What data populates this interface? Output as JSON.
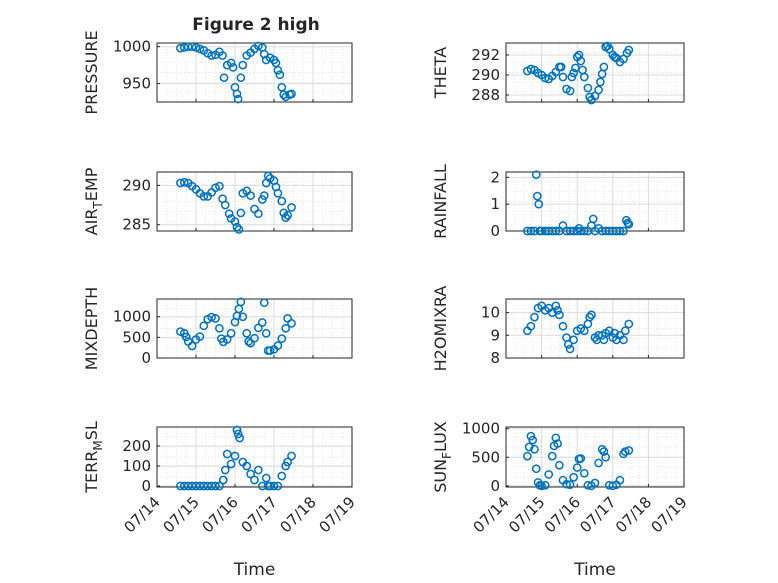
{
  "figure_title": "Figure 2 high",
  "x_tick_labels": [
    "07/14",
    "07/15",
    "07/16",
    "07/17",
    "07/18",
    "07/19"
  ],
  "x_label": "Time",
  "colors": {
    "marker": "#0072BD",
    "axis": "#262626",
    "grid": "#dcdcdc"
  },
  "chart_data": [
    {
      "type": "scatter",
      "title": "Figure 2 high",
      "ylabel": "PRESSURE",
      "ylabel_sub": "",
      "xlabel": "",
      "ylim": [
        925,
        1005
      ],
      "yticks": [
        950,
        1000
      ],
      "xlim": [
        0,
        5
      ],
      "grid": true,
      "legend": "none",
      "points": [
        [
          0.6,
          998
        ],
        [
          0.7,
          999
        ],
        [
          0.8,
          1000
        ],
        [
          0.9,
          1000
        ],
        [
          1.0,
          999
        ],
        [
          1.1,
          997
        ],
        [
          1.2,
          995
        ],
        [
          1.3,
          991
        ],
        [
          1.4,
          988
        ],
        [
          1.5,
          989
        ],
        [
          1.6,
          993
        ],
        [
          1.68,
          988
        ],
        [
          1.72,
          958
        ],
        [
          1.8,
          975
        ],
        [
          1.9,
          978
        ],
        [
          1.95,
          972
        ],
        [
          2.0,
          945
        ],
        [
          2.05,
          936
        ],
        [
          2.08,
          929
        ],
        [
          2.15,
          958
        ],
        [
          2.2,
          975
        ],
        [
          2.3,
          988
        ],
        [
          2.4,
          992
        ],
        [
          2.5,
          997
        ],
        [
          2.6,
          1001
        ],
        [
          2.7,
          999
        ],
        [
          2.75,
          990
        ],
        [
          2.8,
          982
        ],
        [
          2.9,
          985
        ],
        [
          3.0,
          982
        ],
        [
          3.05,
          978
        ],
        [
          3.1,
          968
        ],
        [
          3.15,
          962
        ],
        [
          3.2,
          945
        ],
        [
          3.25,
          935
        ],
        [
          3.3,
          932
        ],
        [
          3.4,
          935
        ],
        [
          3.45,
          936
        ]
      ]
    },
    {
      "type": "scatter",
      "ylabel": "THETA",
      "ylabel_sub": "",
      "xlabel": "",
      "ylim": [
        287.3,
        293.2
      ],
      "yticks": [
        288,
        290,
        292
      ],
      "xlim": [
        0,
        5
      ],
      "grid": true,
      "legend": "none",
      "points": [
        [
          0.6,
          290.4
        ],
        [
          0.7,
          290.6
        ],
        [
          0.8,
          290.5
        ],
        [
          0.9,
          290.2
        ],
        [
          1.0,
          290.0
        ],
        [
          1.1,
          289.7
        ],
        [
          1.2,
          289.6
        ],
        [
          1.3,
          289.9
        ],
        [
          1.4,
          290.3
        ],
        [
          1.5,
          290.8
        ],
        [
          1.55,
          290.8
        ],
        [
          1.6,
          289.8
        ],
        [
          1.7,
          288.6
        ],
        [
          1.8,
          288.4
        ],
        [
          1.85,
          289.8
        ],
        [
          1.9,
          290.2
        ],
        [
          1.95,
          290.7
        ],
        [
          2.0,
          291.8
        ],
        [
          2.05,
          292.0
        ],
        [
          2.1,
          291.4
        ],
        [
          2.15,
          290.5
        ],
        [
          2.2,
          289.8
        ],
        [
          2.3,
          288.7
        ],
        [
          2.35,
          287.8
        ],
        [
          2.4,
          287.5
        ],
        [
          2.5,
          287.9
        ],
        [
          2.6,
          288.5
        ],
        [
          2.65,
          289.3
        ],
        [
          2.7,
          290.1
        ],
        [
          2.75,
          290.8
        ],
        [
          2.8,
          292.8
        ],
        [
          2.85,
          292.9
        ],
        [
          2.9,
          292.6
        ],
        [
          3.0,
          292.0
        ],
        [
          3.05,
          291.8
        ],
        [
          3.1,
          291.7
        ],
        [
          3.2,
          291.3
        ],
        [
          3.3,
          291.6
        ],
        [
          3.4,
          292.2
        ],
        [
          3.45,
          292.5
        ]
      ]
    },
    {
      "type": "scatter",
      "ylabel": "AIR",
      "ylabel_sub": "T",
      "ylabel_suffix": "EMP",
      "xlabel": "",
      "ylim": [
        284.2,
        291.7
      ],
      "yticks": [
        285,
        290
      ],
      "xlim": [
        0,
        5
      ],
      "grid": true,
      "legend": "none",
      "points": [
        [
          0.6,
          290.3
        ],
        [
          0.7,
          290.4
        ],
        [
          0.8,
          290.3
        ],
        [
          0.9,
          289.9
        ],
        [
          1.0,
          289.5
        ],
        [
          1.1,
          289.0
        ],
        [
          1.2,
          288.6
        ],
        [
          1.3,
          288.6
        ],
        [
          1.4,
          289.1
        ],
        [
          1.5,
          289.7
        ],
        [
          1.6,
          289.9
        ],
        [
          1.68,
          288.3
        ],
        [
          1.75,
          287.5
        ],
        [
          1.85,
          286.4
        ],
        [
          1.9,
          285.8
        ],
        [
          2.0,
          285.4
        ],
        [
          2.05,
          284.7
        ],
        [
          2.1,
          284.4
        ],
        [
          2.15,
          286.5
        ],
        [
          2.2,
          289.0
        ],
        [
          2.3,
          289.3
        ],
        [
          2.4,
          288.7
        ],
        [
          2.5,
          287.0
        ],
        [
          2.6,
          286.4
        ],
        [
          2.7,
          288.2
        ],
        [
          2.75,
          288.7
        ],
        [
          2.8,
          290.3
        ],
        [
          2.85,
          291.2
        ],
        [
          2.9,
          290.9
        ],
        [
          3.0,
          290.6
        ],
        [
          3.05,
          289.8
        ],
        [
          3.1,
          289.0
        ],
        [
          3.2,
          288.0
        ],
        [
          3.25,
          286.5
        ],
        [
          3.3,
          285.9
        ],
        [
          3.35,
          286.2
        ],
        [
          3.45,
          287.2
        ]
      ]
    },
    {
      "type": "scatter",
      "ylabel": "RAINFALL",
      "ylabel_sub": "",
      "xlabel": "",
      "ylim": [
        0,
        2.2
      ],
      "yticks": [
        0,
        1,
        2
      ],
      "xlim": [
        0,
        5
      ],
      "grid": true,
      "legend": "none",
      "points": [
        [
          0.6,
          0
        ],
        [
          0.7,
          0
        ],
        [
          0.8,
          0
        ],
        [
          0.85,
          2.1
        ],
        [
          0.88,
          1.3
        ],
        [
          0.92,
          1.0
        ],
        [
          0.95,
          0
        ],
        [
          1.0,
          0
        ],
        [
          1.1,
          0
        ],
        [
          1.2,
          0
        ],
        [
          1.3,
          0
        ],
        [
          1.4,
          0
        ],
        [
          1.5,
          0
        ],
        [
          1.6,
          0.2
        ],
        [
          1.7,
          0
        ],
        [
          1.8,
          0
        ],
        [
          1.9,
          0
        ],
        [
          2.0,
          0
        ],
        [
          2.05,
          0.1
        ],
        [
          2.1,
          0
        ],
        [
          2.2,
          0
        ],
        [
          2.3,
          0
        ],
        [
          2.4,
          0.2
        ],
        [
          2.45,
          0.45
        ],
        [
          2.5,
          0
        ],
        [
          2.6,
          0.1
        ],
        [
          2.7,
          0
        ],
        [
          2.8,
          0
        ],
        [
          2.9,
          0
        ],
        [
          3.0,
          0
        ],
        [
          3.1,
          0
        ],
        [
          3.2,
          0
        ],
        [
          3.3,
          0
        ],
        [
          3.38,
          0.4
        ],
        [
          3.42,
          0.3
        ],
        [
          3.45,
          0.25
        ]
      ]
    },
    {
      "type": "scatter",
      "ylabel": "MIXDEPTH",
      "ylabel_sub": "",
      "xlabel": "",
      "ylim": [
        0,
        1430
      ],
      "yticks": [
        0,
        500,
        1000
      ],
      "xlim": [
        0,
        5
      ],
      "grid": true,
      "legend": "none",
      "points": [
        [
          0.6,
          640
        ],
        [
          0.7,
          600
        ],
        [
          0.75,
          510
        ],
        [
          0.8,
          400
        ],
        [
          0.9,
          290
        ],
        [
          1.0,
          450
        ],
        [
          1.1,
          520
        ],
        [
          1.2,
          780
        ],
        [
          1.3,
          940
        ],
        [
          1.4,
          990
        ],
        [
          1.5,
          960
        ],
        [
          1.6,
          720
        ],
        [
          1.65,
          470
        ],
        [
          1.7,
          390
        ],
        [
          1.8,
          450
        ],
        [
          1.9,
          600
        ],
        [
          2.0,
          870
        ],
        [
          2.05,
          1020
        ],
        [
          2.1,
          1190
        ],
        [
          2.15,
          1360
        ],
        [
          2.2,
          1000
        ],
        [
          2.3,
          600
        ],
        [
          2.35,
          400
        ],
        [
          2.4,
          360
        ],
        [
          2.5,
          480
        ],
        [
          2.6,
          730
        ],
        [
          2.7,
          860
        ],
        [
          2.75,
          1340
        ],
        [
          2.8,
          600
        ],
        [
          2.85,
          180
        ],
        [
          2.9,
          180
        ],
        [
          3.0,
          210
        ],
        [
          3.1,
          300
        ],
        [
          3.2,
          470
        ],
        [
          3.3,
          720
        ],
        [
          3.35,
          960
        ],
        [
          3.45,
          840
        ]
      ]
    },
    {
      "type": "scatter",
      "ylabel": "H2OMIXRA",
      "ylabel_sub": "",
      "xlabel": "",
      "ylim": [
        8,
        10.6
      ],
      "yticks": [
        8,
        9,
        10
      ],
      "xlim": [
        0,
        5
      ],
      "grid": true,
      "legend": "none",
      "points": [
        [
          0.6,
          9.2
        ],
        [
          0.7,
          9.4
        ],
        [
          0.8,
          9.8
        ],
        [
          0.9,
          10.2
        ],
        [
          1.0,
          10.3
        ],
        [
          1.1,
          10.1
        ],
        [
          1.2,
          10.2
        ],
        [
          1.3,
          10.0
        ],
        [
          1.4,
          10.3
        ],
        [
          1.45,
          10.1
        ],
        [
          1.5,
          9.9
        ],
        [
          1.6,
          9.4
        ],
        [
          1.7,
          8.9
        ],
        [
          1.75,
          8.6
        ],
        [
          1.8,
          8.4
        ],
        [
          1.9,
          8.8
        ],
        [
          2.0,
          9.2
        ],
        [
          2.1,
          9.3
        ],
        [
          2.2,
          9.2
        ],
        [
          2.3,
          9.5
        ],
        [
          2.35,
          9.8
        ],
        [
          2.4,
          9.9
        ],
        [
          2.5,
          8.9
        ],
        [
          2.55,
          8.8
        ],
        [
          2.6,
          9.0
        ],
        [
          2.7,
          9.0
        ],
        [
          2.75,
          8.8
        ],
        [
          2.8,
          9.1
        ],
        [
          2.9,
          9.2
        ],
        [
          3.0,
          8.9
        ],
        [
          3.05,
          9.1
        ],
        [
          3.1,
          8.8
        ],
        [
          3.2,
          9.0
        ],
        [
          3.3,
          8.8
        ],
        [
          3.35,
          9.2
        ],
        [
          3.45,
          9.5
        ]
      ]
    },
    {
      "type": "scatter",
      "ylabel": "TERR",
      "ylabel_sub": "M",
      "ylabel_suffix": "SL",
      "xlabel": "Time",
      "ylim": [
        -5,
        295
      ],
      "yticks": [
        0,
        100,
        200
      ],
      "xlim": [
        0,
        5
      ],
      "grid": true,
      "legend": "none",
      "points": [
        [
          0.6,
          0
        ],
        [
          0.7,
          0
        ],
        [
          0.8,
          0
        ],
        [
          0.9,
          0
        ],
        [
          1.0,
          0
        ],
        [
          1.1,
          0
        ],
        [
          1.2,
          0
        ],
        [
          1.3,
          0
        ],
        [
          1.4,
          0
        ],
        [
          1.5,
          0
        ],
        [
          1.6,
          0
        ],
        [
          1.7,
          30
        ],
        [
          1.75,
          80
        ],
        [
          1.8,
          160
        ],
        [
          1.9,
          110
        ],
        [
          2.0,
          150
        ],
        [
          2.05,
          280
        ],
        [
          2.08,
          260
        ],
        [
          2.12,
          240
        ],
        [
          2.2,
          120
        ],
        [
          2.3,
          100
        ],
        [
          2.4,
          60
        ],
        [
          2.5,
          30
        ],
        [
          2.6,
          80
        ],
        [
          2.7,
          0
        ],
        [
          2.8,
          40
        ],
        [
          2.85,
          0
        ],
        [
          2.9,
          0
        ],
        [
          3.0,
          0
        ],
        [
          3.1,
          0
        ],
        [
          3.2,
          50
        ],
        [
          3.3,
          100
        ],
        [
          3.35,
          120
        ],
        [
          3.45,
          150
        ]
      ]
    },
    {
      "type": "scatter",
      "ylabel": "SUN",
      "ylabel_sub": "F",
      "ylabel_suffix": "LUX",
      "xlabel": "Time",
      "ylim": [
        -20,
        1030
      ],
      "yticks": [
        0,
        500,
        1000
      ],
      "xlim": [
        0,
        5
      ],
      "grid": true,
      "legend": "none",
      "points": [
        [
          0.6,
          520
        ],
        [
          0.65,
          680
        ],
        [
          0.7,
          870
        ],
        [
          0.75,
          800
        ],
        [
          0.8,
          640
        ],
        [
          0.85,
          300
        ],
        [
          0.9,
          60
        ],
        [
          0.95,
          10
        ],
        [
          1.0,
          0
        ],
        [
          1.1,
          10
        ],
        [
          1.2,
          200
        ],
        [
          1.3,
          520
        ],
        [
          1.35,
          700
        ],
        [
          1.4,
          840
        ],
        [
          1.45,
          740
        ],
        [
          1.5,
          360
        ],
        [
          1.6,
          100
        ],
        [
          1.7,
          30
        ],
        [
          1.8,
          20
        ],
        [
          1.9,
          150
        ],
        [
          2.0,
          320
        ],
        [
          2.05,
          470
        ],
        [
          2.1,
          480
        ],
        [
          2.2,
          220
        ],
        [
          2.3,
          10
        ],
        [
          2.4,
          0
        ],
        [
          2.5,
          50
        ],
        [
          2.6,
          400
        ],
        [
          2.7,
          640
        ],
        [
          2.75,
          600
        ],
        [
          2.8,
          500
        ],
        [
          2.9,
          10
        ],
        [
          3.0,
          0
        ],
        [
          3.1,
          20
        ],
        [
          3.2,
          100
        ],
        [
          3.3,
          560
        ],
        [
          3.35,
          600
        ],
        [
          3.45,
          620
        ]
      ]
    }
  ]
}
